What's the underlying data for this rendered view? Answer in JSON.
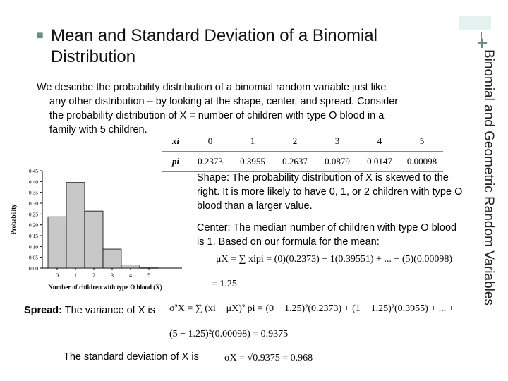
{
  "slide": {
    "title_line1": "Mean and Standard Deviation of a Binomial",
    "title_line2": "Distribution",
    "side_title": "Binomial and Geometric Random Variables",
    "plus_sign": "+",
    "bullet_icon": "square-bullet-icon"
  },
  "intro": {
    "lines": [
      "We describe the probability distribution of a binomial random variable just like",
      "any other distribution – by looking at the shape, center, and spread. Consider",
      "the probability distribution of X = number of children with type O blood in a",
      "family with 5 children."
    ]
  },
  "table": {
    "x_label": "xi",
    "p_label": "pi",
    "x_values": [
      "0",
      "1",
      "2",
      "3",
      "4",
      "5"
    ],
    "p_values": [
      "0.2373",
      "0.3955",
      "0.2637",
      "0.0879",
      "0.0147",
      "0.00098"
    ]
  },
  "shape": {
    "heading": "Shape",
    "text": ": The probability distribution of X is skewed to the right. It is more likely to have 0, 1, or 2 children with type O blood than a larger value."
  },
  "center": {
    "heading": "Center",
    "text": ": The median number of children with type O blood is 1.  Based on our formula for the mean:"
  },
  "equations": {
    "mean_line1": "μX = ∑ xipi = (0)(0.2373) + 1(0.39551) + ... + (5)(0.00098)",
    "mean_line2": "= 1.25",
    "var_line1": "σ²X = ∑ (xi − μX)² pi = (0 − 1.25)²(0.2373) + (1 − 1.25)²(0.3955) + ... +",
    "var_line2": "(5 − 1.25)²(0.00098) = 0.9375",
    "sd_line": "σX = √0.9375 = 0.968"
  },
  "spread": {
    "heading": "Spread:",
    "text": " The variance of X is",
    "sd_text": "The standard deviation  of X is"
  },
  "chart_data": {
    "type": "bar",
    "categories": [
      "0",
      "1",
      "2",
      "3",
      "4",
      "5"
    ],
    "values": [
      0.2373,
      0.3955,
      0.2637,
      0.0879,
      0.0147,
      0.00098
    ],
    "title": "",
    "xlabel": "Number of children with type O blood (X)",
    "ylabel": "Probability",
    "ylim": [
      0,
      0.45
    ],
    "yticks": [
      "0.00",
      "0.05",
      "0.10",
      "0.15",
      "0.20",
      "0.25",
      "0.30",
      "0.35",
      "0.40",
      "0.45"
    ],
    "xticks": [
      "0",
      "1",
      "2",
      "3",
      "4",
      "5"
    ],
    "grid": false,
    "bar_color": "#c8c8c8"
  }
}
